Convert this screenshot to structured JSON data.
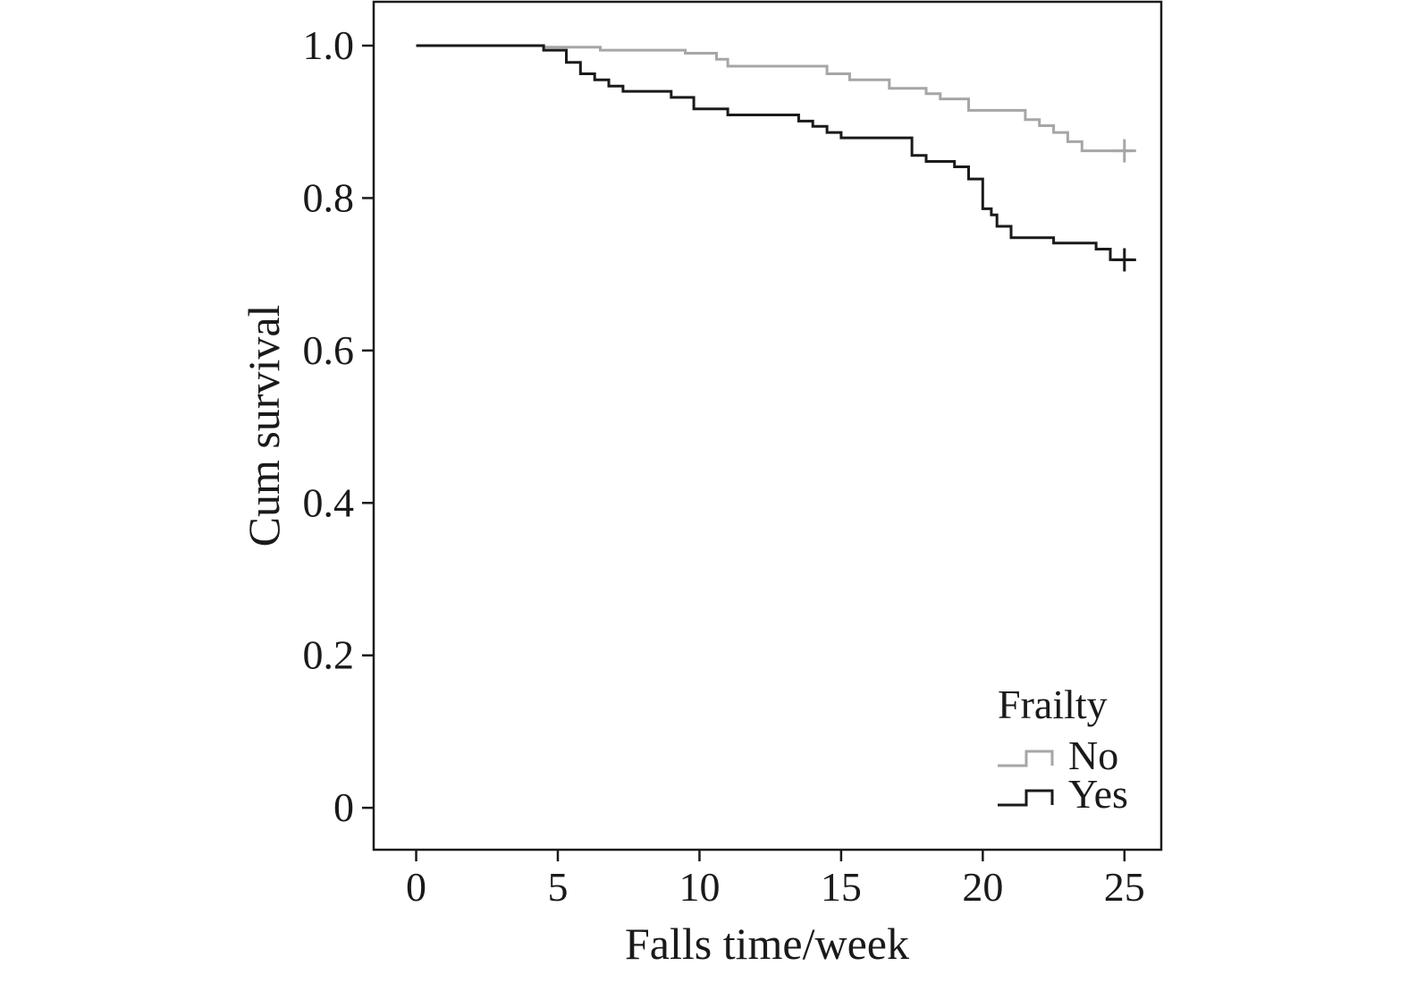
{
  "chart_data": {
    "type": "line",
    "subtype": "step",
    "title": "",
    "xlabel": "Falls time/week",
    "ylabel": "Cum survival",
    "xlim": [
      -1.5,
      26.3
    ],
    "ylim": [
      -0.055,
      1.0575
    ],
    "xticks": [
      0,
      5,
      10,
      15,
      20,
      25
    ],
    "yticks": [
      0,
      0.2,
      0.4,
      0.6,
      0.8,
      1.0
    ],
    "xtick_labels": [
      "0",
      "5",
      "10",
      "15",
      "20",
      "25"
    ],
    "ytick_labels": [
      "0",
      "0.2",
      "0.4",
      "0.6",
      "0.8",
      "1.0"
    ],
    "grid": false,
    "legend": {
      "title": "Frailty",
      "position": "bottom-right"
    },
    "series": [
      {
        "name": "No",
        "color": "#a6a6a6",
        "censor_mark": {
          "x": 25,
          "y": 0.862
        },
        "points": [
          [
            0,
            1.0
          ],
          [
            4.5,
            0.998
          ],
          [
            6.5,
            0.994
          ],
          [
            9.5,
            0.99
          ],
          [
            10.6,
            0.982
          ],
          [
            11.0,
            0.973
          ],
          [
            14.5,
            0.963
          ],
          [
            15.3,
            0.955
          ],
          [
            16.7,
            0.944
          ],
          [
            18.0,
            0.937
          ],
          [
            18.5,
            0.93
          ],
          [
            19.5,
            0.915
          ],
          [
            21.5,
            0.903
          ],
          [
            22.0,
            0.895
          ],
          [
            22.5,
            0.886
          ],
          [
            23.0,
            0.874
          ],
          [
            23.5,
            0.862
          ],
          [
            25.3,
            0.862
          ]
        ]
      },
      {
        "name": "Yes",
        "color": "#1a1a1a",
        "censor_mark": {
          "x": 25,
          "y": 0.719
        },
        "points": [
          [
            0,
            1.0
          ],
          [
            4.5,
            0.994
          ],
          [
            5.3,
            0.978
          ],
          [
            5.8,
            0.963
          ],
          [
            6.3,
            0.955
          ],
          [
            6.8,
            0.947
          ],
          [
            7.3,
            0.94
          ],
          [
            9.0,
            0.932
          ],
          [
            9.8,
            0.917
          ],
          [
            11.0,
            0.909
          ],
          [
            13.5,
            0.901
          ],
          [
            14.0,
            0.894
          ],
          [
            14.5,
            0.886
          ],
          [
            15.0,
            0.879
          ],
          [
            17.5,
            0.856
          ],
          [
            18.0,
            0.848
          ],
          [
            19.0,
            0.841
          ],
          [
            19.5,
            0.825
          ],
          [
            20.0,
            0.786
          ],
          [
            20.3,
            0.778
          ],
          [
            20.5,
            0.763
          ],
          [
            21.0,
            0.748
          ],
          [
            22.5,
            0.741
          ],
          [
            24.0,
            0.733
          ],
          [
            24.5,
            0.719
          ],
          [
            25.3,
            0.719
          ]
        ]
      }
    ]
  }
}
